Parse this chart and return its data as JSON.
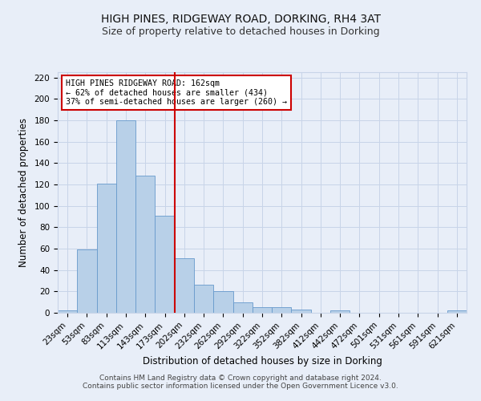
{
  "title": "HIGH PINES, RIDGEWAY ROAD, DORKING, RH4 3AT",
  "subtitle": "Size of property relative to detached houses in Dorking",
  "xlabel": "Distribution of detached houses by size in Dorking",
  "ylabel": "Number of detached properties",
  "bar_labels": [
    "23sqm",
    "53sqm",
    "83sqm",
    "113sqm",
    "143sqm",
    "173sqm",
    "202sqm",
    "232sqm",
    "262sqm",
    "292sqm",
    "322sqm",
    "352sqm",
    "382sqm",
    "412sqm",
    "442sqm",
    "472sqm",
    "501sqm",
    "531sqm",
    "561sqm",
    "591sqm",
    "621sqm"
  ],
  "bar_values": [
    2,
    59,
    121,
    180,
    128,
    91,
    51,
    26,
    20,
    10,
    5,
    5,
    3,
    0,
    2,
    0,
    0,
    0,
    0,
    0,
    2
  ],
  "bar_color": "#b8d0e8",
  "bar_edge_color": "#6699cc",
  "ylim": [
    0,
    225
  ],
  "yticks": [
    0,
    20,
    40,
    60,
    80,
    100,
    120,
    140,
    160,
    180,
    200,
    220
  ],
  "vline_x": 5.5,
  "vline_color": "#cc0000",
  "annotation_box_text": "HIGH PINES RIDGEWAY ROAD: 162sqm\n← 62% of detached houses are smaller (434)\n37% of semi-detached houses are larger (260) →",
  "footer_line1": "Contains HM Land Registry data © Crown copyright and database right 2024.",
  "footer_line2": "Contains public sector information licensed under the Open Government Licence v3.0.",
  "bg_color": "#e8eef8",
  "plot_bg_color": "#e8eef8",
  "grid_color": "#c8d4e8",
  "title_fontsize": 10,
  "subtitle_fontsize": 9,
  "axis_label_fontsize": 8.5,
  "tick_fontsize": 7.5,
  "footer_fontsize": 6.5
}
